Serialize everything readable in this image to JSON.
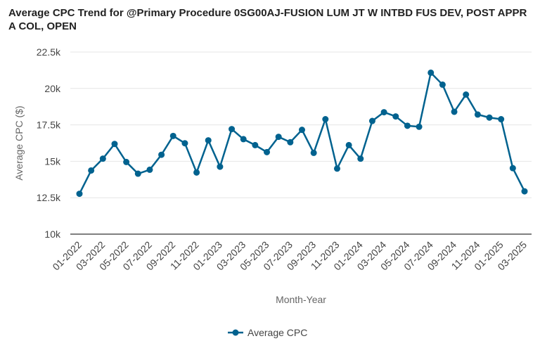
{
  "chart_data": {
    "type": "line",
    "title": "Average CPC Trend for @Primary Procedure 0SG00AJ-FUSION LUM JT W INTBD FUS DEV, POST APPR A COL, OPEN",
    "xlabel": "Month-Year",
    "ylabel": "Average CPC ($)",
    "ylim": [
      10000,
      22500
    ],
    "yticks": [
      10000,
      12500,
      15000,
      17500,
      20000,
      22500
    ],
    "ytick_labels": [
      "10k",
      "12.5k",
      "15k",
      "17.5k",
      "20k",
      "22.5k"
    ],
    "grid": true,
    "legend": "bottom",
    "color": "#00628f",
    "x": [
      "01-2022",
      "02-2022",
      "03-2022",
      "04-2022",
      "05-2022",
      "06-2022",
      "07-2022",
      "08-2022",
      "09-2022",
      "10-2022",
      "11-2022",
      "12-2022",
      "01-2023",
      "02-2023",
      "03-2023",
      "04-2023",
      "05-2023",
      "06-2023",
      "07-2023",
      "08-2023",
      "09-2023",
      "10-2023",
      "11-2023",
      "12-2023",
      "01-2024",
      "02-2024",
      "03-2024",
      "04-2024",
      "05-2024",
      "06-2024",
      "07-2024",
      "08-2024",
      "09-2024",
      "10-2024",
      "11-2024",
      "12-2024",
      "01-2025",
      "02-2025",
      "03-2025"
    ],
    "xtick_labels": [
      "01-2022",
      "03-2022",
      "05-2022",
      "07-2022",
      "09-2022",
      "11-2022",
      "01-2023",
      "03-2023",
      "05-2023",
      "07-2023",
      "09-2023",
      "11-2023",
      "01-2024",
      "03-2024",
      "05-2024",
      "07-2024",
      "09-2024",
      "11-2024",
      "01-2025",
      "03-2025"
    ],
    "series": [
      {
        "name": "Average CPC",
        "values": [
          12770,
          14370,
          15180,
          16190,
          14950,
          14150,
          14420,
          15450,
          16740,
          16240,
          14230,
          16440,
          14630,
          17210,
          16520,
          16110,
          15630,
          16680,
          16310,
          17160,
          15580,
          17890,
          14500,
          16110,
          15180,
          17770,
          18370,
          18080,
          17440,
          17370,
          21080,
          20260,
          18400,
          19580,
          18210,
          18000,
          17890,
          14530,
          12940
        ]
      }
    ]
  }
}
